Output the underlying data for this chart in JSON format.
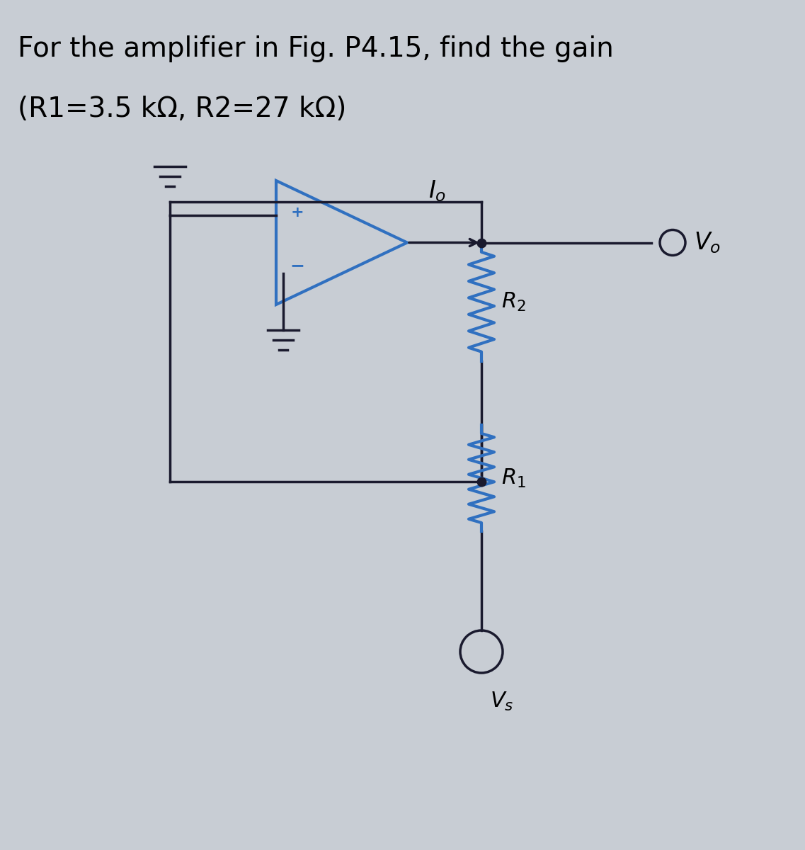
{
  "title_line1": "For the amplifier in Fig. P4.15, find the gain",
  "title_line2": "(R1=3.5 kΩ, R2=27 kΩ)",
  "bg_color": "#c8cdd4",
  "line_color": "#1a1a2e",
  "blue_color": "#3070c0",
  "R1_label": "$R_1$",
  "R2_label": "$R_2$",
  "Io_label": "$I_o$",
  "Vo_label": "$V_o$",
  "Vs_label": "$V_s$",
  "title_fontsize": 28,
  "label_fontsize": 22
}
